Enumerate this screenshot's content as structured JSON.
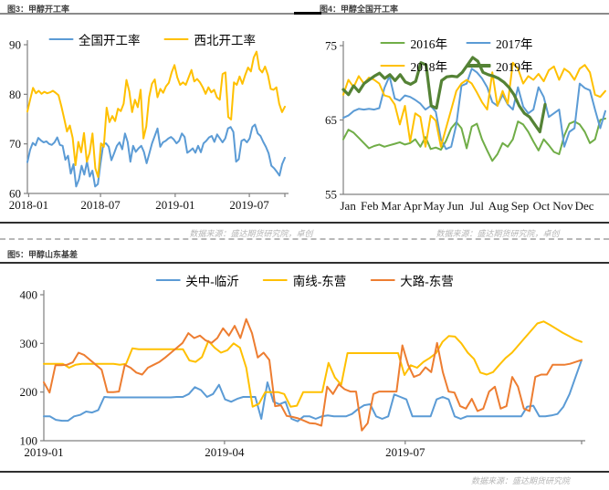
{
  "sections": {
    "figure3": {
      "title": "图3：甲醇开工率",
      "source": "数据来源：盛达期货研究院，卓创"
    },
    "figure4": {
      "title": "图4：甲醇全国开工率",
      "source": "数据来源：盛达期货研究院，卓创"
    },
    "figure5": {
      "title": "图5：甲醇山东基差",
      "source": "数据来源：盛达期货研究院"
    }
  },
  "colors": {
    "blue": "#5B9BD5",
    "yellow": "#FFC000",
    "orange": "#ED7D31",
    "green": "#70AD47",
    "darkgreen": "#548235",
    "axis": "#808080"
  },
  "chart_data": [
    {
      "id": "chart3",
      "type": "line",
      "title": "甲醇开工率",
      "ylim": [
        60,
        90
      ],
      "yticks": [
        60,
        70,
        80,
        90
      ],
      "xticks": [
        {
          "pos": 0.005,
          "label": "2018-01"
        },
        {
          "pos": 0.284,
          "label": "2018-07"
        },
        {
          "pos": 0.574,
          "label": "2019-01"
        },
        {
          "pos": 0.862,
          "label": "2019-07"
        }
      ],
      "grid": false,
      "legend_position": "top",
      "series": [
        {
          "name": "全国开工率",
          "color": "#5B9BD5",
          "width": 2,
          "values": [
            66.3,
            68.8,
            70.2,
            69.7,
            71.2,
            70.7,
            70.3,
            70.5,
            70.0,
            69.8,
            70.3,
            71.3,
            69.8,
            69.6,
            66.8,
            67.6,
            64.0,
            65.9,
            61.4,
            62.8,
            65.6,
            63.8,
            66.4,
            63.4,
            64.6,
            61.4,
            61.9,
            66.1,
            69.9,
            70.1,
            69.4,
            66.7,
            68.1,
            69.6,
            70.3,
            68.9,
            72.1,
            70.4,
            66.4,
            69.6,
            68.4,
            69.1,
            69.6,
            68.4,
            66.1,
            68.1,
            70.1,
            71.6,
            73.1,
            69.4,
            70.3,
            70.6,
            71.1,
            71.4,
            70.9,
            70.1,
            70.6,
            72.1,
            71.4,
            68.2,
            68.6,
            69.1,
            68.2,
            69.6,
            68.3,
            70.1,
            70.6,
            71.3,
            71.6,
            70.4,
            71.9,
            71.1,
            70.3,
            71.1,
            73.1,
            73.4,
            72.4,
            66.4,
            66.9,
            70.6,
            70.9,
            70.3,
            71.1,
            73.4,
            73.9,
            72.1,
            71.6,
            70.4,
            69.4,
            68.1,
            65.6,
            65.1,
            64.4,
            63.6,
            65.9,
            67.2
          ]
        },
        {
          "name": "西北开工率",
          "color": "#FFC000",
          "width": 2,
          "values": [
            76.5,
            79.0,
            81.3,
            80.2,
            80.7,
            80.1,
            80.5,
            80.2,
            80.4,
            80.7,
            80.3,
            79.8,
            77.6,
            75.1,
            72.5,
            73.7,
            71.2,
            65.7,
            70.4,
            68.3,
            72.2,
            66.4,
            68.2,
            72.1,
            65.1,
            63.3,
            70.1,
            69.4,
            77.3,
            74.4,
            75.6,
            74.6,
            77.1,
            76.6,
            78.1,
            82.9,
            80.6,
            76.4,
            78.9,
            77.4,
            80.9,
            71.1,
            73.5,
            79.4,
            82.1,
            83.0,
            79.4,
            81.1,
            80.3,
            81.6,
            82.3,
            84.4,
            85.9,
            83.4,
            81.9,
            82.4,
            81.9,
            83.4,
            84.9,
            82.6,
            83.1,
            82.4,
            81.4,
            80.1,
            81.4,
            80.4,
            80.9,
            79.4,
            78.9,
            84.1,
            84.4,
            75.4,
            74.9,
            82.4,
            81.9,
            83.6,
            82.1,
            83.9,
            85.4,
            84.6,
            87.4,
            88.6,
            85.1,
            84.4,
            85.6,
            83.9,
            81.1,
            80.9,
            81.4,
            78.1,
            76.4,
            77.5
          ]
        }
      ]
    },
    {
      "id": "chart4",
      "type": "line",
      "title": "甲醇全国开工率",
      "ylim": [
        55,
        75
      ],
      "yticks": [
        55,
        65,
        75
      ],
      "xticks": [
        {
          "pos": 0.018,
          "label": "Jan"
        },
        {
          "pos": 0.1,
          "label": "Feb"
        },
        {
          "pos": 0.182,
          "label": "Mar"
        },
        {
          "pos": 0.264,
          "label": "Apr"
        },
        {
          "pos": 0.346,
          "label": "May"
        },
        {
          "pos": 0.428,
          "label": "Jun"
        },
        {
          "pos": 0.51,
          "label": "Jul"
        },
        {
          "pos": 0.592,
          "label": "Aug"
        },
        {
          "pos": 0.674,
          "label": "Sep"
        },
        {
          "pos": 0.756,
          "label": "Oct"
        },
        {
          "pos": 0.838,
          "label": "Nov"
        },
        {
          "pos": 0.92,
          "label": "Dec"
        }
      ],
      "grid": false,
      "legend_position": "top",
      "series": [
        {
          "name": "2016年",
          "color": "#70AD47",
          "width": 2,
          "values": [
            62.4,
            63.7,
            63.3,
            62.6,
            61.9,
            61.2,
            61.5,
            61.7,
            61.4,
            61.6,
            61.8,
            62.0,
            61.7,
            61.9,
            62.4,
            61.4,
            62.7,
            61.1,
            61.3,
            61.0,
            62.2,
            63.9,
            64.7,
            63.9,
            61.2,
            64.1,
            64.5,
            62.4,
            60.9,
            59.5,
            60.4,
            61.9,
            61.4,
            62.4,
            64.8,
            64.4,
            63.4,
            62.1,
            60.9,
            62.4,
            61.6,
            60.7,
            60.4,
            62.9,
            64.5,
            64.8,
            64.4,
            63.4,
            61.9,
            62.4,
            65.0,
            65.2
          ]
        },
        {
          "name": "2017年",
          "color": "#5B9BD5",
          "width": 2,
          "values": [
            65.3,
            65.6,
            66.2,
            66.5,
            66.4,
            66.5,
            66.4,
            66.6,
            69.3,
            70.9,
            67.9,
            67.6,
            68.3,
            68.1,
            67.7,
            67.2,
            66.4,
            66.9,
            66.1,
            62.4,
            61.1,
            61.4,
            64.4,
            69.6,
            69.9,
            71.9,
            71.4,
            70.6,
            69.4,
            67.4,
            66.9,
            68.4,
            67.1,
            66.4,
            69.4,
            66.8,
            65.9,
            66.4,
            69.4,
            68.1,
            65.4,
            65.9,
            66.4,
            61.4,
            63.4,
            63.9,
            69.9,
            69.3,
            69.0,
            66.4,
            63.9,
            66.2
          ]
        },
        {
          "name": "2018年",
          "color": "#FFC000",
          "width": 2,
          "values": [
            68.4,
            70.4,
            69.4,
            70.9,
            69.9,
            70.7,
            70.4,
            69.9,
            68.3,
            68.1,
            67.1,
            64.4,
            66.9,
            62.1,
            65.9,
            65.4,
            61.4,
            65.6,
            64.9,
            61.4,
            63.9,
            66.4,
            68.9,
            69.9,
            70.4,
            69.9,
            68.7,
            67.4,
            66.4,
            71.4,
            66.9,
            68.9,
            67.2,
            72.7,
            71.9,
            69.9,
            70.9,
            70.4,
            71.2,
            70.2,
            71.7,
            72.2,
            70.4,
            71.9,
            71.4,
            70.4,
            71.9,
            72.4,
            71.4,
            68.4,
            68.1,
            68.9
          ]
        },
        {
          "name": "2019年",
          "color": "#548235",
          "width": 3.2,
          "xend": 0.77,
          "values": [
            69.1,
            68.4,
            69.6,
            68.8,
            69.9,
            70.4,
            70.9,
            71.3,
            70.6,
            71.1,
            70.3,
            71.1,
            70.1,
            69.8,
            70.2,
            72.7,
            72.4,
            66.9,
            66.6,
            70.3,
            70.8,
            70.9,
            70.8,
            71.4,
            72.4,
            73.4,
            72.9,
            71.4,
            71.1,
            70.9,
            70.6,
            70.1,
            69.4,
            68.4,
            66.9,
            65.9,
            65.4,
            64.4,
            63.4,
            67.1
          ]
        }
      ]
    },
    {
      "id": "chart5",
      "type": "line",
      "title": "甲醇山东基差",
      "ylim": [
        100,
        400
      ],
      "yticks": [
        100,
        200,
        300,
        400
      ],
      "xticks": [
        {
          "pos": 0.0,
          "label": "2019-01"
        },
        {
          "pos": 0.336,
          "label": "2019-04"
        },
        {
          "pos": 0.672,
          "label": "2019-07"
        }
      ],
      "grid": false,
      "legend_position": "top",
      "series": [
        {
          "name": "关中-临沂",
          "color": "#5B9BD5",
          "width": 2,
          "values": [
            150,
            150,
            143,
            141,
            141,
            150,
            153,
            160,
            158,
            163,
            190,
            189,
            189,
            189,
            189,
            189,
            189,
            189,
            189,
            189,
            189,
            189,
            190,
            190,
            196,
            210,
            204,
            190,
            196,
            215,
            185,
            180,
            186,
            190,
            190,
            190,
            145,
            220,
            180,
            175,
            180,
            145,
            140,
            150,
            150,
            145,
            150,
            152,
            150,
            150,
            150,
            155,
            165,
            173,
            175,
            150,
            145,
            150,
            195,
            190,
            185,
            150,
            150,
            150,
            150,
            185,
            190,
            185,
            150,
            145,
            150,
            150,
            150,
            150,
            150,
            150,
            150,
            150,
            150,
            150,
            170,
            172,
            150,
            150,
            152,
            155,
            170,
            196,
            231,
            266
          ]
        },
        {
          "name": "南线-东营",
          "color": "#FFC000",
          "width": 2,
          "values": [
            258,
            258,
            258,
            258,
            250,
            256,
            258,
            258,
            258,
            258,
            258,
            258,
            256,
            258,
            290,
            288,
            288,
            288,
            288,
            288,
            288,
            288,
            288,
            265,
            262,
            272,
            305,
            291,
            281,
            286,
            300,
            291,
            250,
            170,
            176,
            200,
            200,
            200,
            196,
            170,
            172,
            200,
            200,
            200,
            200,
            260,
            230,
            215,
            280,
            280,
            280,
            280,
            280,
            280,
            280,
            280,
            280,
            235,
            255,
            250,
            262,
            270,
            280,
            303,
            315,
            314,
            300,
            281,
            268,
            240,
            236,
            241,
            256,
            270,
            281,
            296,
            311,
            326,
            341,
            345,
            338,
            330,
            322,
            315,
            308,
            303
          ]
        },
        {
          "name": "大路-东营",
          "color": "#ED7D31",
          "width": 2,
          "values": [
            220,
            199,
            255,
            255,
            256,
            261,
            281,
            276,
            266,
            256,
            246,
            200,
            200,
            201,
            256,
            250,
            240,
            236,
            250,
            256,
            262,
            271,
            281,
            291,
            301,
            321,
            311,
            316,
            306,
            301,
            311,
            331,
            316,
            336,
            311,
            350,
            321,
            271,
            281,
            266,
            171,
            173,
            151,
            149,
            146,
            141,
            136,
            135,
            131,
            211,
            196,
            216,
            206,
            201,
            201,
            121,
            136,
            196,
            201,
            201,
            201,
            201,
            296,
            256,
            231,
            236,
            251,
            241,
            301,
            241,
            201,
            199,
            171,
            166,
            186,
            161,
            166,
            201,
            211,
            166,
            171,
            231,
            211,
            166,
            161,
            231,
            236,
            236,
            256,
            256,
            256,
            258,
            262,
            266
          ]
        }
      ]
    }
  ]
}
